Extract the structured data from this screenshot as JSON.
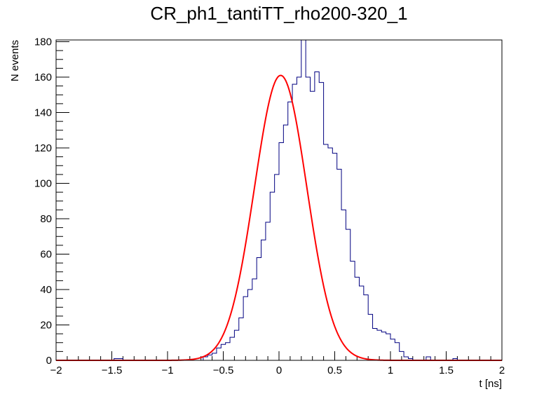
{
  "chart_data": {
    "type": "histogram",
    "title": "CR_ph1_tantiTT_rho200-320_1",
    "xlabel": "t [ns]",
    "ylabel": "N events",
    "xlim": [
      -2,
      2
    ],
    "ylim": [
      0,
      181
    ],
    "bin_width": 0.04,
    "x_ticks": [
      -2,
      -1.5,
      -1,
      -0.5,
      0,
      0.5,
      1,
      1.5,
      2
    ],
    "x_tick_labels": [
      "−2",
      "−1.5",
      "−1",
      "−0.5",
      "0",
      "0.5",
      "1",
      "1.5",
      "2"
    ],
    "y_ticks": [
      0,
      20,
      40,
      60,
      80,
      100,
      120,
      140,
      160,
      180
    ],
    "y_tick_labels": [
      "0",
      "20",
      "40",
      "60",
      "80",
      "100",
      "120",
      "140",
      "160",
      "180"
    ],
    "grid": false,
    "colors": {
      "histogram": "#000080",
      "fit": "#ff0000",
      "frame": "#000000"
    },
    "histogram": {
      "name": "data",
      "bin_edges_start": -2,
      "counts": [
        0,
        0,
        0,
        0,
        0,
        0,
        0,
        0,
        0,
        0,
        0,
        0,
        0,
        1,
        1,
        0,
        0,
        0,
        0,
        0,
        0,
        0,
        0,
        0,
        0,
        0,
        0,
        0,
        0,
        0,
        0,
        0,
        0,
        2,
        3,
        4,
        7,
        9,
        10,
        13,
        17,
        24,
        36,
        40,
        46,
        58,
        68,
        78,
        95,
        105,
        123,
        133,
        146,
        156,
        160,
        185,
        160,
        152,
        163,
        157,
        122,
        120,
        117,
        108,
        85,
        74,
        56,
        47,
        42,
        37,
        26,
        18,
        17,
        16,
        15,
        12,
        10,
        5,
        2,
        1,
        0,
        0,
        0,
        2,
        0,
        0,
        0,
        0,
        0,
        1,
        0,
        0,
        0,
        0,
        0,
        0,
        0,
        0,
        0,
        0
      ]
    },
    "fit": {
      "name": "gaussian-fit",
      "amplitude": 161,
      "mean": 0.015,
      "sigma": 0.235
    }
  }
}
